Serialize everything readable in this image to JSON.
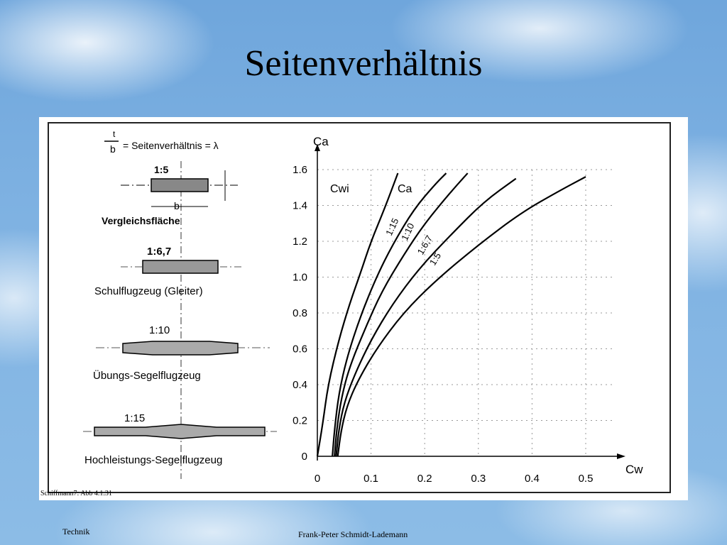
{
  "slide": {
    "title": "Seitenverhältnis",
    "caption": "Schiffmann7: Abb 4.1.31",
    "footer_left": "Technik",
    "footer_center": "Frank-Peter Schmidt-Lademann"
  },
  "diagram": {
    "formula": {
      "numerator": "t",
      "denominator": "b",
      "text": "= Seitenverhältnis = λ"
    },
    "wings": [
      {
        "ratio": "1:5",
        "label": "Vergleichsfläche",
        "dim_label": "b"
      },
      {
        "ratio": "1:6,7",
        "label": "Schulflugzeug (Gleiter)"
      },
      {
        "ratio": "1:10",
        "label": "Übungs-Segelflugzeug"
      },
      {
        "ratio": "1:15",
        "label": "Hochleistungs-Segelflugzeug"
      }
    ]
  },
  "chart_data": {
    "type": "line",
    "xlabel": "Cw",
    "ylabel": "Ca",
    "xlim": [
      0,
      0.5
    ],
    "ylim": [
      0,
      1.6
    ],
    "xticks": [
      "0",
      "0.1",
      "0.2",
      "0.3",
      "0.4",
      "0.5"
    ],
    "yticks": [
      "0",
      "0.2",
      "0.4",
      "0.6",
      "0.8",
      "1.0",
      "1.2",
      "1.4",
      "1.6"
    ],
    "grid": true,
    "series": [
      {
        "name": "Cwi",
        "x": [
          0.0,
          0.01,
          0.02,
          0.04,
          0.06,
          0.08,
          0.1,
          0.125,
          0.15
        ],
        "y": [
          0.0,
          0.18,
          0.4,
          0.65,
          0.85,
          1.02,
          1.2,
          1.38,
          1.58
        ]
      },
      {
        "name": "1:15",
        "x": [
          0.028,
          0.032,
          0.04,
          0.055,
          0.08,
          0.11,
          0.14,
          0.18,
          0.22,
          0.24
        ],
        "y": [
          0.0,
          0.15,
          0.35,
          0.55,
          0.78,
          1.0,
          1.18,
          1.38,
          1.52,
          1.58
        ]
      },
      {
        "name": "1:10",
        "x": [
          0.032,
          0.036,
          0.045,
          0.06,
          0.09,
          0.12,
          0.16,
          0.2,
          0.25,
          0.28
        ],
        "y": [
          0.0,
          0.15,
          0.33,
          0.5,
          0.72,
          0.92,
          1.12,
          1.3,
          1.48,
          1.58
        ]
      },
      {
        "name": "1:6,7",
        "x": [
          0.035,
          0.04,
          0.05,
          0.07,
          0.1,
          0.14,
          0.19,
          0.25,
          0.31,
          0.37
        ],
        "y": [
          0.0,
          0.15,
          0.3,
          0.46,
          0.65,
          0.85,
          1.05,
          1.24,
          1.42,
          1.55
        ]
      },
      {
        "name": "1:5",
        "x": [
          0.038,
          0.044,
          0.055,
          0.075,
          0.11,
          0.16,
          0.22,
          0.3,
          0.38,
          0.45,
          0.5
        ],
        "y": [
          0.0,
          0.14,
          0.28,
          0.42,
          0.6,
          0.8,
          0.98,
          1.18,
          1.36,
          1.48,
          1.56
        ]
      }
    ],
    "curve_labels": [
      "Cwi",
      "Ca",
      "1:15",
      "1:10",
      "1:6,7",
      "1:5"
    ]
  }
}
